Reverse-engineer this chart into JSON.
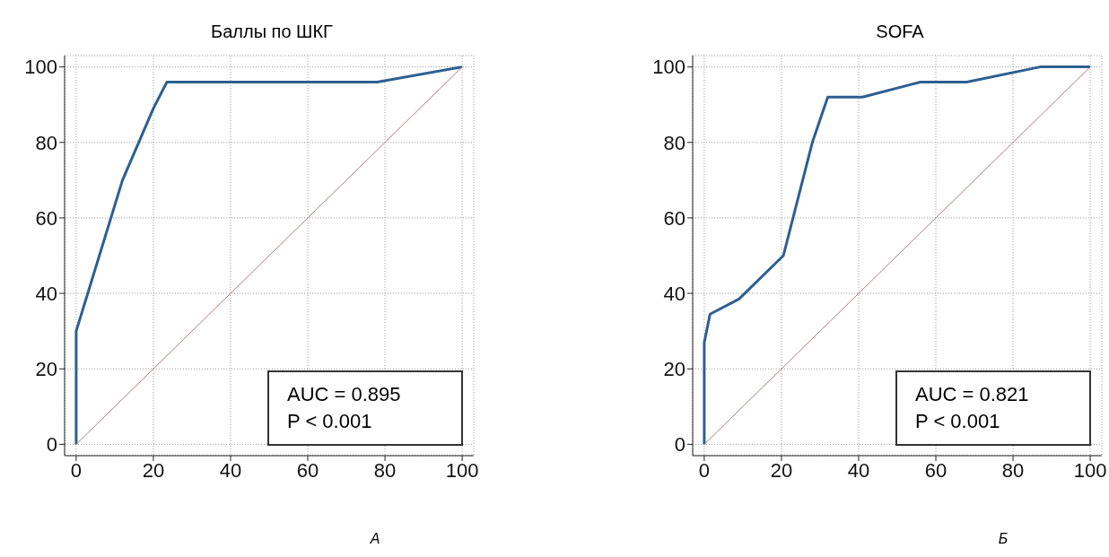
{
  "chart_data": [
    {
      "type": "line",
      "title": "Баллы по ШКГ",
      "xlim": [
        -3,
        103
      ],
      "ylim": [
        -3,
        103
      ],
      "xticks": [
        0,
        20,
        40,
        60,
        80,
        100
      ],
      "yticks": [
        0,
        20,
        40,
        60,
        80,
        100
      ],
      "grid": true,
      "legend": false,
      "series": [
        {
          "color": "#2d5f91",
          "x": [
            0,
            0,
            12,
            20,
            23.5,
            78,
            100
          ],
          "values": [
            0,
            30,
            70,
            89,
            96,
            96,
            100
          ]
        },
        {
          "color": "#b07a7a",
          "x": [
            0,
            100
          ],
          "values": [
            0,
            100
          ]
        }
      ],
      "annotations": [
        "AUC = 0.895",
        "P < 0.001",
        "А"
      ]
    },
    {
      "type": "line",
      "title": "SOFA",
      "xlim": [
        -3,
        103
      ],
      "ylim": [
        -3,
        103
      ],
      "xticks": [
        0,
        20,
        40,
        60,
        80,
        100
      ],
      "yticks": [
        0,
        20,
        40,
        60,
        80,
        100
      ],
      "grid": true,
      "legend": false,
      "series": [
        {
          "color": "#2d5f91",
          "x": [
            0,
            0,
            1.5,
            9,
            20.5,
            28,
            32,
            41,
            56,
            68,
            87,
            100
          ],
          "values": [
            0,
            27,
            34.5,
            38.5,
            50,
            80,
            92,
            92,
            96,
            96,
            100,
            100
          ]
        },
        {
          "color": "#b07a7a",
          "x": [
            0,
            100
          ],
          "values": [
            0,
            100
          ]
        }
      ],
      "annotations": [
        "AUC = 0.821",
        "P < 0.001",
        "Б"
      ]
    }
  ]
}
